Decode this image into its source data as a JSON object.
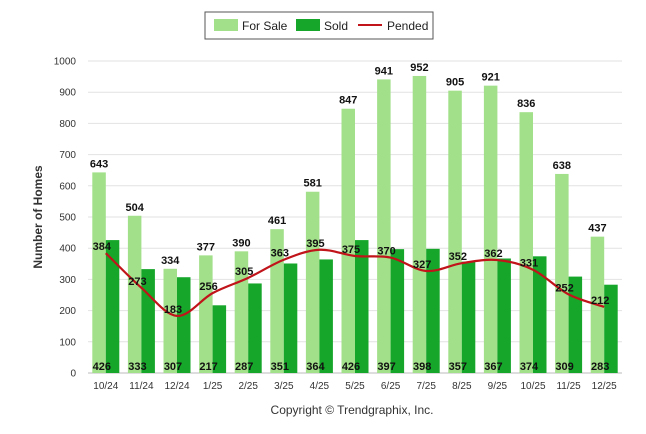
{
  "chart_data": {
    "type": "bar",
    "title": "",
    "xlabel": "",
    "ylabel": "Number of Homes",
    "ylim": [
      0,
      1000
    ],
    "yticks": [
      0,
      100,
      200,
      300,
      400,
      500,
      600,
      700,
      800,
      900,
      1000
    ],
    "categories": [
      "10/24",
      "11/24",
      "12/24",
      "1/25",
      "2/25",
      "3/25",
      "4/25",
      "5/25",
      "6/25",
      "7/25",
      "8/25",
      "9/25",
      "10/25",
      "11/25",
      "12/25"
    ],
    "series": [
      {
        "name": "For Sale",
        "kind": "bar",
        "color": "#a3e08a",
        "values": [
          643,
          504,
          334,
          377,
          390,
          461,
          581,
          847,
          941,
          952,
          905,
          921,
          836,
          638,
          437
        ]
      },
      {
        "name": "Sold",
        "kind": "bar",
        "color": "#16a62a",
        "values": [
          426,
          333,
          307,
          217,
          287,
          351,
          364,
          426,
          397,
          398,
          357,
          367,
          374,
          309,
          283
        ]
      },
      {
        "name": "Pended",
        "kind": "line",
        "color": "#c0141a",
        "values": [
          384,
          273,
          183,
          256,
          305,
          363,
          395,
          375,
          370,
          327,
          352,
          362,
          331,
          252,
          212
        ]
      }
    ],
    "legend_position": "top-center",
    "grid": true
  },
  "copyright": "Copyright © Trendgraphix, Inc."
}
